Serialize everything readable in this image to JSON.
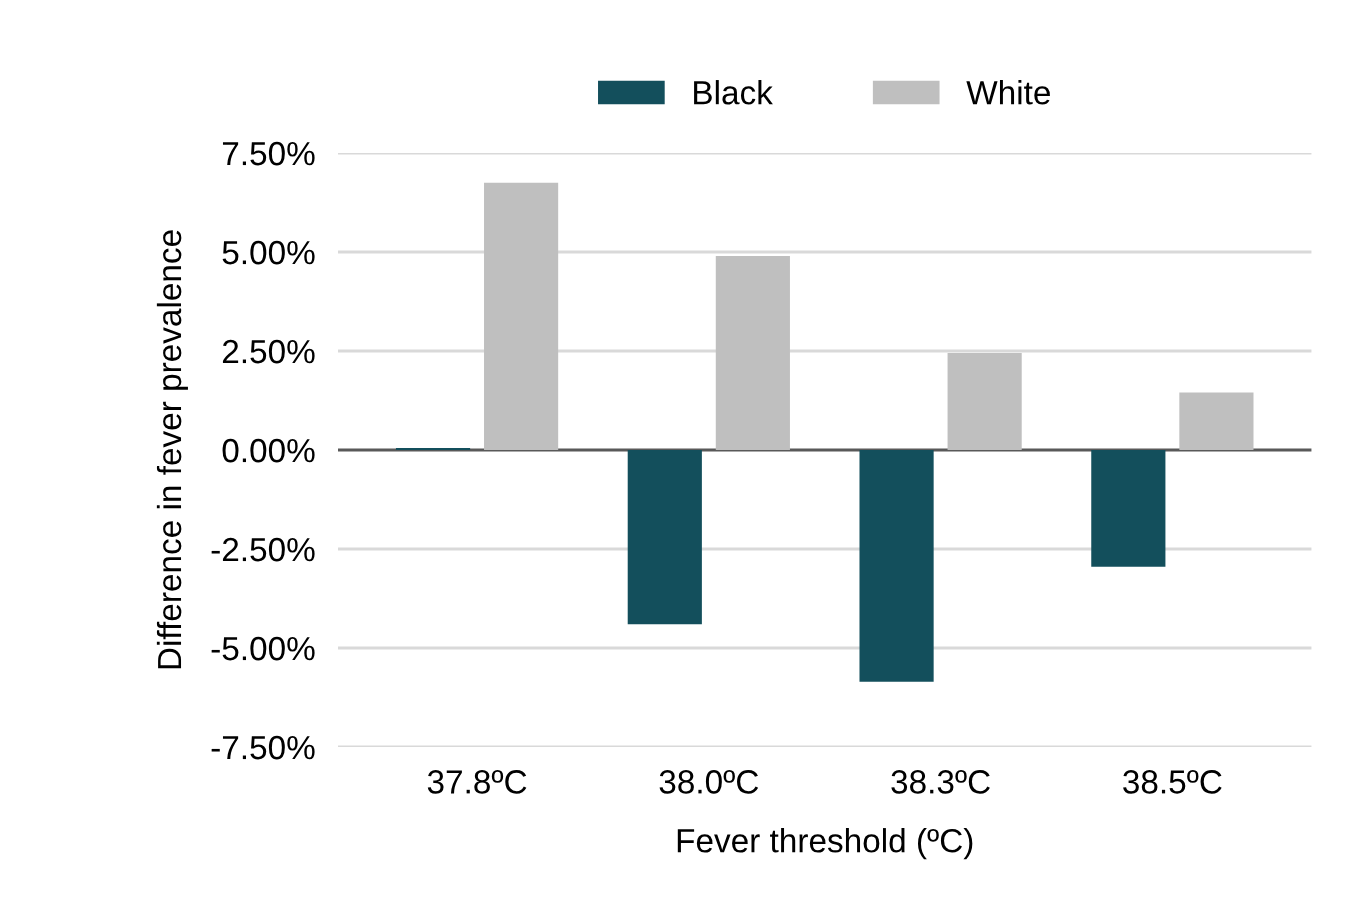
{
  "chart_data": {
    "type": "bar",
    "xlabel": "Fever threshold (ºC)",
    "ylabel": "Difference in fever prevalence",
    "categories": [
      "37.8ºC",
      "38.0ºC",
      "38.3ºC",
      "38.5ºC"
    ],
    "series": [
      {
        "name": "Black",
        "color": "#134f5c",
        "values": [
          0.05,
          -4.4,
          -5.85,
          -2.95
        ]
      },
      {
        "name": "White",
        "color": "#bfbfbf",
        "values": [
          6.75,
          4.9,
          2.45,
          1.45
        ]
      }
    ],
    "ylim": [
      -7.5,
      7.5
    ],
    "yticks": [
      {
        "value": -7.5,
        "label": "-7.50%"
      },
      {
        "value": -5,
        "label": "-5.00%"
      },
      {
        "value": -2.5,
        "label": "-2.50%"
      },
      {
        "value": 0,
        "label": "0.00%"
      },
      {
        "value": 2.5,
        "label": "2.50%"
      },
      {
        "value": 5,
        "label": "5.00%"
      },
      {
        "value": 7.5,
        "label": "7.50%"
      }
    ],
    "grid": "y",
    "legend": "top"
  }
}
